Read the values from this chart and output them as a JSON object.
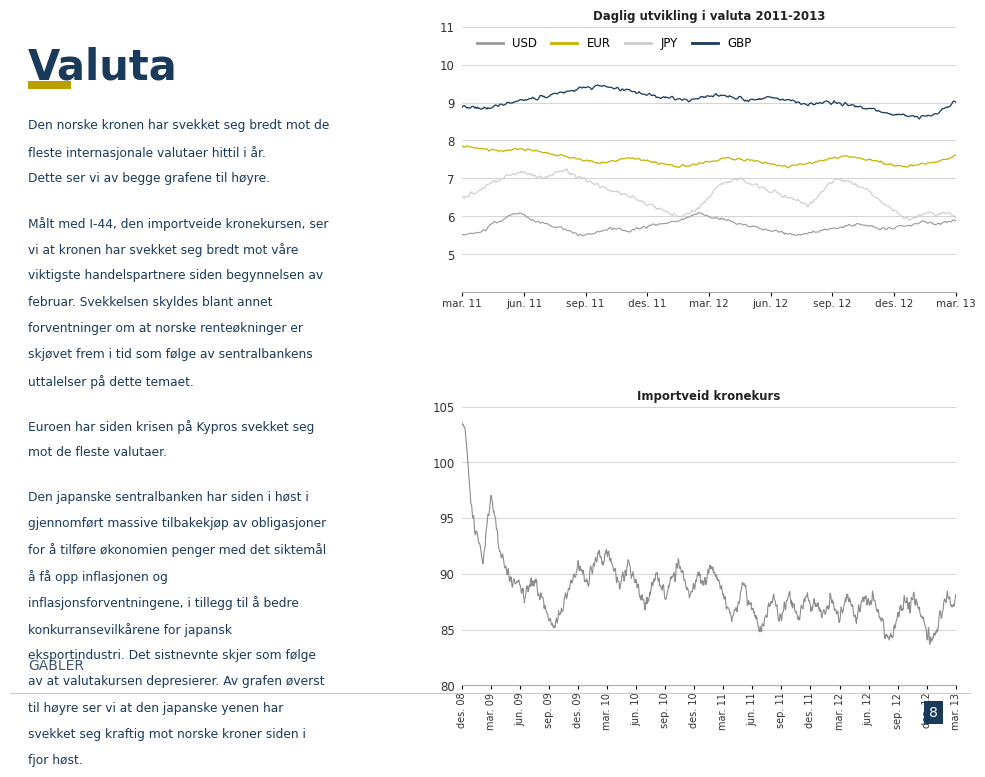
{
  "title1": "Daglig utvikling i valuta 2011-2013",
  "title2": "Importveid kronekurs",
  "page_title": "Valuta",
  "page_title_color": "#1a3a5c",
  "accent_color": "#b8a000",
  "background_color": "#ffffff",
  "text_color": "#1a3a5c",
  "body_paragraphs": [
    "Den norske kronen har svekket seg bredt mot de fleste internasjonale valutaer hittil i år. Dette ser vi av begge grafene til høyre.",
    "Målt med I-44, den importveide kronekursen, ser vi at kronen har svekket seg bredt mot våre viktigste handelspartnere siden begynnelsen av februar. Svekkelsen skyldes blant annet forventninger om at norske renteøkninger er skjøvet frem i tid som følge av sentralbankens uttalelser på dette temaet.",
    "Euroen har siden krisen på Kypros svekket seg mot de fleste valutaer.",
    "Den japanske sentralbanken har siden i høst i gjennomført massive tilbakekjøp av obligasjoner for å tilføre økonomien penger med det siktemål å få opp inflasjonen og inflasjonsforventningene, i tillegg til å bedre konkurransevilkårene for japansk eksportindustri. Det sistnevnte skjer som følge av at valutakursen depresierer. Av grafen øverst til høyre ser vi at den japanske yenen har svekket seg kraftig mot norske kroner siden i fjor høst."
  ],
  "footer_text": "GABLER",
  "footer_number": "8",
  "chart1": {
    "ylim": [
      4,
      11
    ],
    "yticks": [
      5,
      6,
      7,
      8,
      9,
      10,
      11
    ],
    "n_points": 520,
    "xlabels": [
      "mar. 11",
      "jun. 11",
      "sep. 11",
      "des. 11",
      "mar. 12",
      "jun. 12",
      "sep. 12",
      "des. 12",
      "mar. 13"
    ],
    "series_order": [
      "USD",
      "EUR",
      "JPY",
      "GBP"
    ],
    "USD_color": "#999999",
    "EUR_color": "#c8b400",
    "JPY_color": "#cccccc",
    "GBP_color": "#1a3a5c"
  },
  "chart2": {
    "ylim": [
      80,
      105
    ],
    "yticks": [
      80,
      85,
      90,
      95,
      100,
      105
    ],
    "n_points": 1200,
    "xlabels": [
      "des. 08",
      "mar. 09",
      "jun. 09",
      "sep. 09",
      "des. 09",
      "mar. 10",
      "jun. 10",
      "sep. 10",
      "des. 10",
      "mar. 11",
      "jun. 11",
      "sep. 11",
      "des. 11",
      "mar. 12",
      "jun. 12",
      "sep. 12",
      "des. 12",
      "mar. 13"
    ],
    "color": "#8c8c8c"
  }
}
